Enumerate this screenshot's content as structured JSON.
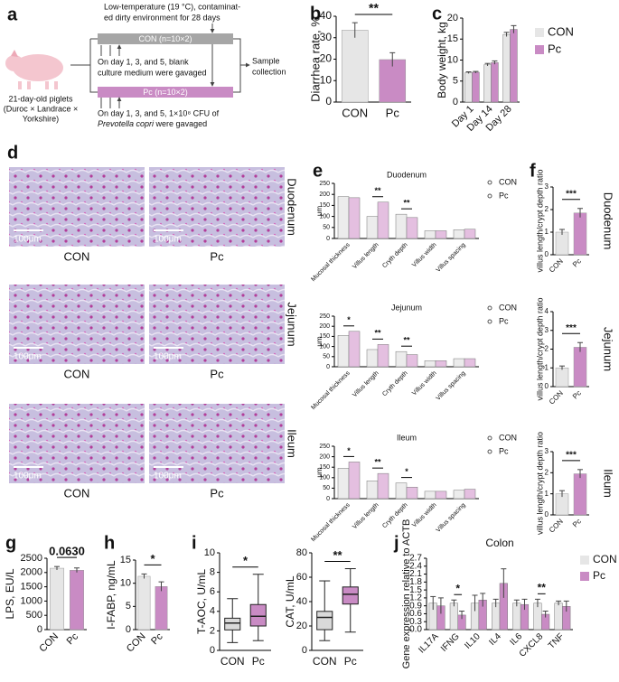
{
  "diagram": {
    "panel": "a",
    "environment": [
      "Low-temperature (19 °C), contaminat-",
      "ed dirty environment for 28 days"
    ],
    "con_group": "CON (n=10×2)",
    "con_note": [
      "On day 1, 3, and 5, blank",
      "culture medium were gavaged"
    ],
    "sample": [
      "Sample",
      "collection"
    ],
    "piglets": [
      "21-day-old piglets",
      "(Duroc × Landrace ×",
      "Yorkshire)"
    ],
    "pc_group": "Pc (n=10×2)",
    "pc_note": "On day 1, 3, and 5, 1×10⁸ CFU of",
    "pc_species": "Prevotella copri",
    "pc_note_end": "were gavaged"
  },
  "histology": {
    "panel": "d",
    "rows": [
      "Duodenum",
      "Jejunum",
      "Ileum"
    ],
    "columns": [
      "CON",
      "Pc"
    ],
    "scale_bar": "100μm"
  },
  "chart_data": [
    {
      "type": "bar",
      "panel": "b",
      "ylabel": "Diarrhea rate, %",
      "categories": [
        "CON",
        "Pc"
      ],
      "values": [
        33.5,
        19.8
      ],
      "errors": [
        3.5,
        3.2
      ],
      "colors": [
        "#e6e6e6",
        "#c98bc4"
      ],
      "ylim": [
        0,
        40
      ],
      "yticks": [
        0,
        10,
        20,
        30,
        40
      ],
      "annotation": "**"
    },
    {
      "type": "bar",
      "panel": "c",
      "ylabel": "Body weight, kg",
      "categories": [
        "Day 1",
        "Day 14",
        "Day 28"
      ],
      "series": [
        {
          "name": "CON",
          "color": "#e6e6e6",
          "values": [
            7.0,
            8.9,
            16.1
          ],
          "errors": [
            0.2,
            0.3,
            0.5
          ]
        },
        {
          "name": "Pc",
          "color": "#c98bc4",
          "values": [
            7.1,
            9.4,
            17.3
          ],
          "errors": [
            0.2,
            0.4,
            0.9
          ]
        }
      ],
      "ylim": [
        0,
        20
      ],
      "yticks": [
        0,
        5,
        10,
        15,
        20
      ],
      "legend": "right",
      "legend_marker": "square"
    },
    {
      "type": "bar",
      "panel": "e",
      "title": "Duodenum",
      "ylabel": "μm",
      "categories": [
        "Mucosal thickness",
        "Villus length",
        "Cryth depth",
        "Villus width",
        "Villus spacing"
      ],
      "series": [
        {
          "name": "CON",
          "color": "#ececec",
          "values": [
            190,
            100,
            110,
            35,
            40
          ]
        },
        {
          "name": "Pc",
          "color": "#e4bfe0",
          "values": [
            185,
            165,
            95,
            35,
            42
          ]
        }
      ],
      "significance": [
        null,
        "**",
        "**",
        null,
        null
      ],
      "ylim": [
        0,
        250
      ],
      "yticks": [
        0,
        50,
        100,
        150,
        200,
        250
      ],
      "legend": "right",
      "legend_marker": "circle"
    },
    {
      "type": "bar",
      "title": "Jejunum",
      "ylabel": "μm",
      "categories": [
        "Mucosal thickness",
        "Villus length",
        "Cryth depth",
        "Villus width",
        "Villus spacing"
      ],
      "series": [
        {
          "name": "CON",
          "color": "#ececec",
          "values": [
            155,
            85,
            75,
            30,
            40
          ]
        },
        {
          "name": "Pc",
          "color": "#e4bfe0",
          "values": [
            175,
            110,
            60,
            30,
            40
          ]
        }
      ],
      "significance": [
        "*",
        "**",
        "**",
        null,
        null
      ],
      "ylim": [
        0,
        250
      ],
      "yticks": [
        0,
        50,
        100,
        150,
        200,
        250
      ],
      "legend": "right",
      "legend_marker": "circle"
    },
    {
      "type": "bar",
      "title": "Ileum",
      "ylabel": "μm",
      "categories": [
        "Mucosal thickness",
        "Villus length",
        "Cryth depth",
        "Villus width",
        "Villus spacing"
      ],
      "series": [
        {
          "name": "CON",
          "color": "#ececec",
          "values": [
            145,
            85,
            75,
            35,
            40
          ]
        },
        {
          "name": "Pc",
          "color": "#e4bfe0",
          "values": [
            175,
            120,
            55,
            35,
            45
          ]
        }
      ],
      "significance": [
        "*",
        "**",
        "*",
        null,
        null
      ],
      "ylim": [
        0,
        250
      ],
      "yticks": [
        0,
        50,
        100,
        150,
        200,
        250
      ],
      "legend": "right",
      "legend_marker": "circle"
    },
    {
      "type": "bar",
      "panel": "f",
      "side_label": "Duodenum",
      "ylabel": "villus length/crypt depth ratio",
      "categories": [
        "CON",
        "Pc"
      ],
      "values": [
        1.0,
        1.85
      ],
      "errors": [
        0.12,
        0.2
      ],
      "colors": [
        "#e6e6e6",
        "#c98bc4"
      ],
      "ylim": [
        0,
        3
      ],
      "yticks": [
        0,
        1,
        2,
        3
      ],
      "annotation": "***"
    },
    {
      "type": "bar",
      "side_label": "Jejunum",
      "ylabel": "villus length/crypt depth ratio",
      "categories": [
        "CON",
        "Pc"
      ],
      "values": [
        1.0,
        2.1
      ],
      "errors": [
        0.1,
        0.25
      ],
      "colors": [
        "#e6e6e6",
        "#c98bc4"
      ],
      "ylim": [
        0,
        4
      ],
      "yticks": [
        0,
        1,
        2,
        3,
        4
      ],
      "annotation": "***"
    },
    {
      "type": "bar",
      "side_label": "Ileum",
      "ylabel": "villus length/crypt depth ratio",
      "categories": [
        "CON",
        "Pc"
      ],
      "values": [
        1.0,
        1.95
      ],
      "errors": [
        0.15,
        0.2
      ],
      "colors": [
        "#e6e6e6",
        "#c98bc4"
      ],
      "ylim": [
        0,
        3
      ],
      "yticks": [
        0,
        1,
        2,
        3
      ],
      "annotation": "***"
    },
    {
      "type": "bar",
      "panel": "g",
      "ylabel": "LPS, EU/L",
      "categories": [
        "CON",
        "Pc"
      ],
      "values": [
        2150,
        2080
      ],
      "errors": [
        60,
        80
      ],
      "colors": [
        "#e6e6e6",
        "#c98bc4"
      ],
      "ylim": [
        0,
        2500
      ],
      "yticks": [
        0,
        500,
        1000,
        1500,
        2000,
        2500
      ],
      "annotation": "0.0630"
    },
    {
      "type": "bar",
      "panel": "h",
      "ylabel": "I-FABP, ng/mL",
      "categories": [
        "CON",
        "Pc"
      ],
      "values": [
        11.5,
        9.3
      ],
      "errors": [
        0.5,
        1.0
      ],
      "colors": [
        "#e6e6e6",
        "#c98bc4"
      ],
      "ylim": [
        0,
        15
      ],
      "yticks": [
        0,
        5,
        10,
        15
      ],
      "annotation": "*"
    },
    {
      "type": "box",
      "panel": "i",
      "ylabel": "T-AOC, U/mL",
      "categories": [
        "CON",
        "Pc"
      ],
      "boxes": [
        {
          "min": 0.8,
          "q1": 2.1,
          "median": 2.8,
          "q3": 3.3,
          "max": 5.3
        },
        {
          "min": 1.0,
          "q1": 2.5,
          "median": 3.5,
          "q3": 4.7,
          "max": 7.8
        }
      ],
      "colors": [
        "#d9d9d9",
        "#c98bc4"
      ],
      "ylim": [
        0,
        10
      ],
      "yticks": [
        0,
        2,
        4,
        6,
        8,
        10
      ],
      "annotation": "*"
    },
    {
      "type": "box",
      "ylabel": "CAT, U/mL",
      "categories": [
        "CON",
        "Pc"
      ],
      "boxes": [
        {
          "min": 8,
          "q1": 17,
          "median": 27,
          "q3": 32,
          "max": 57
        },
        {
          "min": 15,
          "q1": 38,
          "median": 46,
          "q3": 52,
          "max": 67
        }
      ],
      "colors": [
        "#d9d9d9",
        "#c98bc4"
      ],
      "ylim": [
        0,
        80
      ],
      "yticks": [
        0,
        20,
        40,
        60,
        80
      ],
      "annotation": "**"
    },
    {
      "type": "bar",
      "panel": "j",
      "title": "Colon",
      "ylabel": "Gene expression relative to ACTB",
      "categories": [
        "IL17A",
        "IFNG",
        "IL10",
        "IL4",
        "IL6",
        "CXCL8",
        "TNF"
      ],
      "series": [
        {
          "name": "CON",
          "color": "#e6e6e6",
          "values": [
            1.0,
            1.0,
            1.0,
            1.0,
            1.0,
            1.0,
            1.0
          ],
          "errors": [
            0.25,
            0.12,
            0.3,
            0.15,
            0.12,
            0.15,
            0.08
          ]
        },
        {
          "name": "Pc",
          "color": "#c98bc4",
          "values": [
            0.9,
            0.55,
            1.12,
            1.75,
            0.95,
            0.58,
            0.88
          ],
          "errors": [
            0.3,
            0.15,
            0.25,
            0.55,
            0.2,
            0.12,
            0.2
          ]
        }
      ],
      "significance": [
        null,
        "*",
        null,
        null,
        null,
        "**",
        null
      ],
      "ylim": [
        0,
        2.7
      ],
      "yticks": [
        {
          "value": 0,
          "label": "0.0"
        },
        0.3,
        0.6,
        0.9,
        1.2,
        1.5,
        1.8,
        2.1,
        2.4,
        2.7
      ],
      "legend": "right",
      "legend_marker": "square"
    }
  ]
}
